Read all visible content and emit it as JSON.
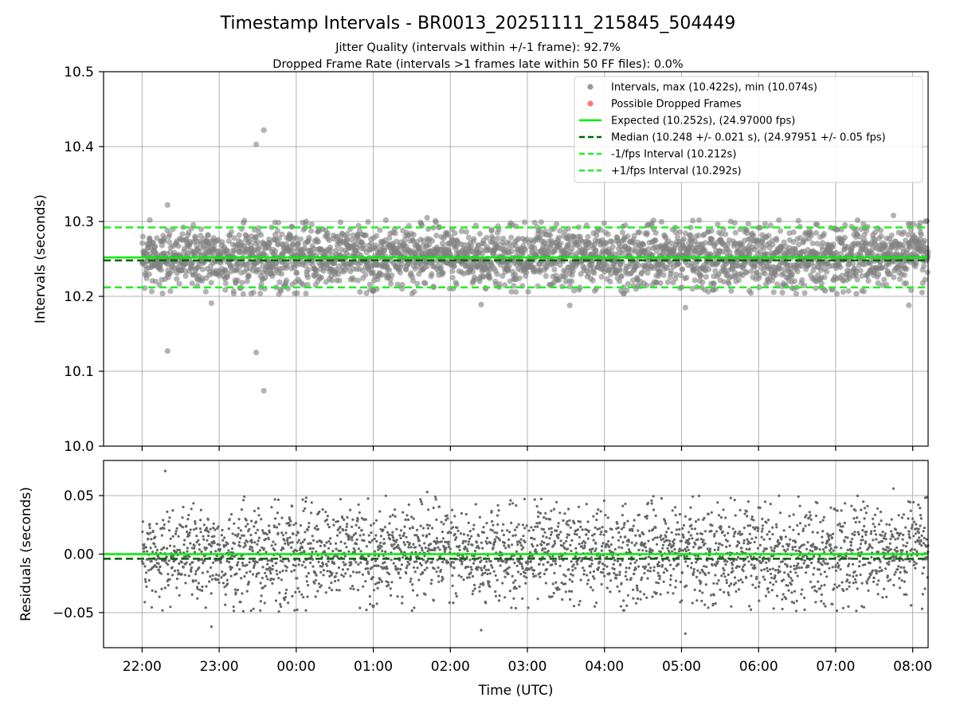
{
  "title": "Timestamp Intervals - BR0013_20251111_215845_504449",
  "subtitle_1": "Jitter Quality (intervals within +/-1 frame): 92.7%",
  "subtitle_2": "Dropped Frame Rate (intervals >1 frames late within 50 FF files): 0.0%",
  "colors": {
    "points": "#808080",
    "dropped": "#ff5555",
    "expected": "#00ee00",
    "median": "#006400",
    "band": "#22ee22",
    "grid": "#b0b0b0"
  },
  "chart_data": [
    {
      "type": "scatter",
      "name": "intervals",
      "ylabel": "Intervals (seconds)",
      "xlabel": "",
      "ylim": [
        10.0,
        10.5
      ],
      "yticks": [
        10.0,
        10.1,
        10.2,
        10.3,
        10.4,
        10.5
      ],
      "ytick_labels": [
        "10.0",
        "10.1",
        "10.2",
        "10.3",
        "10.4",
        "10.5"
      ],
      "xlim_hours": [
        -0.5,
        10.2
      ],
      "xticks_hours": [
        0,
        1,
        2,
        3,
        4,
        5,
        6,
        7,
        8,
        9,
        10
      ],
      "xtick_labels": [
        "22:00",
        "23:00",
        "00:00",
        "01:00",
        "02:00",
        "03:00",
        "04:00",
        "05:00",
        "06:00",
        "07:00",
        "08:00"
      ],
      "grid": true,
      "legend_position": "top-right",
      "legend": [
        {
          "label": "Intervals, max (10.422s), min (10.074s)",
          "kind": "dot",
          "color": "#808080"
        },
        {
          "label": "Possible Dropped Frames",
          "kind": "dot",
          "color": "#ff5555"
        },
        {
          "label": "Expected (10.252s), (24.97000 fps)",
          "kind": "line",
          "color": "#00ee00"
        },
        {
          "label": "Median (10.248 +/- 0.021 s), (24.97951 +/- 0.05 fps)",
          "kind": "dash",
          "color": "#006400"
        },
        {
          "label": "-1/fps Interval (10.212s)",
          "kind": "dash",
          "color": "#22ee22"
        },
        {
          "label": "+1/fps Interval (10.292s)",
          "kind": "dash",
          "color": "#22ee22"
        }
      ],
      "lines": {
        "expected": 10.252,
        "median": 10.248,
        "minus_1fps": 10.212,
        "plus_1fps": 10.292
      },
      "series_summary": {
        "max": 10.422,
        "min": 10.074,
        "median": 10.248,
        "spread": 0.021,
        "time_start_hours": 0,
        "time_end_hours": 10.2
      },
      "outliers": [
        {
          "x": 0.33,
          "y": 10.322
        },
        {
          "x": 0.33,
          "y": 10.127
        },
        {
          "x": 1.48,
          "y": 10.403
        },
        {
          "x": 1.58,
          "y": 10.422
        },
        {
          "x": 1.48,
          "y": 10.125
        },
        {
          "x": 1.58,
          "y": 10.074
        },
        {
          "x": 0.1,
          "y": 10.302
        },
        {
          "x": 0.9,
          "y": 10.191
        },
        {
          "x": 3.7,
          "y": 10.305
        },
        {
          "x": 4.4,
          "y": 10.189
        },
        {
          "x": 5.55,
          "y": 10.188
        },
        {
          "x": 7.05,
          "y": 10.185
        },
        {
          "x": 9.75,
          "y": 10.308
        },
        {
          "x": 9.95,
          "y": 10.188
        },
        {
          "x": 10.1,
          "y": 10.298
        }
      ]
    },
    {
      "type": "scatter",
      "name": "residuals",
      "ylabel": "Residuals (seconds)",
      "xlabel": "Time (UTC)",
      "ylim": [
        -0.08,
        0.08
      ],
      "yticks": [
        -0.05,
        0.0,
        0.05
      ],
      "ytick_labels": [
        "−0.05",
        "0.00",
        "0.05"
      ],
      "xlim_hours": [
        -0.5,
        10.2
      ],
      "xticks_hours": [
        0,
        1,
        2,
        3,
        4,
        5,
        6,
        7,
        8,
        9,
        10
      ],
      "xtick_labels": [
        "22:00",
        "23:00",
        "00:00",
        "01:00",
        "02:00",
        "03:00",
        "04:00",
        "05:00",
        "06:00",
        "07:00",
        "08:00"
      ],
      "grid": true,
      "lines": {
        "expected": 0.0,
        "median": -0.004
      },
      "outliers": [
        {
          "x": 0.3,
          "y": 0.071
        },
        {
          "x": 3.7,
          "y": 0.053
        },
        {
          "x": 9.75,
          "y": 0.056
        },
        {
          "x": 7.05,
          "y": -0.068
        },
        {
          "x": 4.4,
          "y": -0.065
        },
        {
          "x": 0.9,
          "y": -0.062
        }
      ]
    }
  ]
}
